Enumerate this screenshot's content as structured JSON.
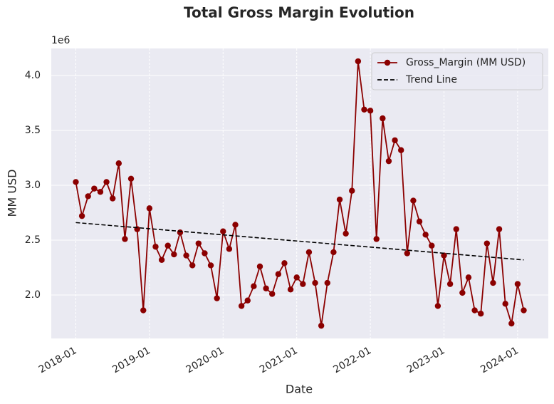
{
  "chart_data": {
    "type": "line",
    "title": "Total Gross Margin Evolution",
    "x_label": "Date",
    "y_label": "MM USD",
    "y_offset_label": "1e6",
    "x": [
      "2018-01",
      "2018-02",
      "2018-03",
      "2018-04",
      "2018-05",
      "2018-06",
      "2018-07",
      "2018-08",
      "2018-09",
      "2018-10",
      "2018-11",
      "2018-12",
      "2019-01",
      "2019-02",
      "2019-03",
      "2019-04",
      "2019-05",
      "2019-06",
      "2019-07",
      "2019-08",
      "2019-09",
      "2019-10",
      "2019-11",
      "2019-12",
      "2020-01",
      "2020-02",
      "2020-03",
      "2020-04",
      "2020-05",
      "2020-06",
      "2020-07",
      "2020-08",
      "2020-09",
      "2020-10",
      "2020-11",
      "2020-12",
      "2021-01",
      "2021-02",
      "2021-03",
      "2021-04",
      "2021-05",
      "2021-06",
      "2021-07",
      "2021-08",
      "2021-09",
      "2021-10",
      "2021-11",
      "2021-12",
      "2022-01",
      "2022-02",
      "2022-03",
      "2022-04",
      "2022-05",
      "2022-06",
      "2022-07",
      "2022-08",
      "2022-09",
      "2022-10",
      "2022-11",
      "2022-12",
      "2023-01",
      "2023-02",
      "2023-03",
      "2023-04",
      "2023-05",
      "2023-06",
      "2023-07",
      "2023-08",
      "2023-09",
      "2023-10",
      "2023-11",
      "2023-12",
      "2024-01",
      "2024-02"
    ],
    "series": [
      {
        "name": "Gross_Margin (MM USD)",
        "color": "#8b0000",
        "marker": "circle",
        "dash": "solid",
        "values": [
          3030000,
          2720000,
          2900000,
          2970000,
          2940000,
          3030000,
          2880000,
          3200000,
          2510000,
          3060000,
          2600000,
          1860000,
          2790000,
          2440000,
          2320000,
          2450000,
          2370000,
          2570000,
          2360000,
          2270000,
          2470000,
          2380000,
          2270000,
          1970000,
          2580000,
          2420000,
          2640000,
          1900000,
          1950000,
          2080000,
          2260000,
          2060000,
          2010000,
          2190000,
          2290000,
          2050000,
          2160000,
          2100000,
          2390000,
          2110000,
          1720000,
          2110000,
          2390000,
          2870000,
          2560000,
          2950000,
          4130000,
          3690000,
          3680000,
          2510000,
          3610000,
          3220000,
          3410000,
          3320000,
          2380000,
          2860000,
          2670000,
          2550000,
          2450000,
          1900000,
          2360000,
          2100000,
          2600000,
          2020000,
          2160000,
          1860000,
          1830000,
          2470000,
          2110000,
          2600000,
          1920000,
          1740000,
          2100000,
          1860000
        ]
      },
      {
        "name": "Trend Line",
        "color": "#000000",
        "marker": "none",
        "dash": "dashed",
        "x": [
          "2018-01",
          "2024-02"
        ],
        "values": [
          2660000,
          2320000
        ]
      }
    ],
    "xlim": [
      "2017-09",
      "2024-06"
    ],
    "xticks": [
      "2018-01",
      "2019-01",
      "2020-01",
      "2021-01",
      "2022-01",
      "2023-01",
      "2024-01"
    ],
    "ylim": [
      1604000,
      4247000
    ],
    "yticks": [
      {
        "value": 2000000,
        "label": "2.0"
      },
      {
        "value": 2500000,
        "label": "2.5"
      },
      {
        "value": 3000000,
        "label": "3.0"
      },
      {
        "value": 3500000,
        "label": "3.5"
      },
      {
        "value": 4000000,
        "label": "4.0"
      }
    ],
    "grid": true,
    "legend": "upper right"
  }
}
